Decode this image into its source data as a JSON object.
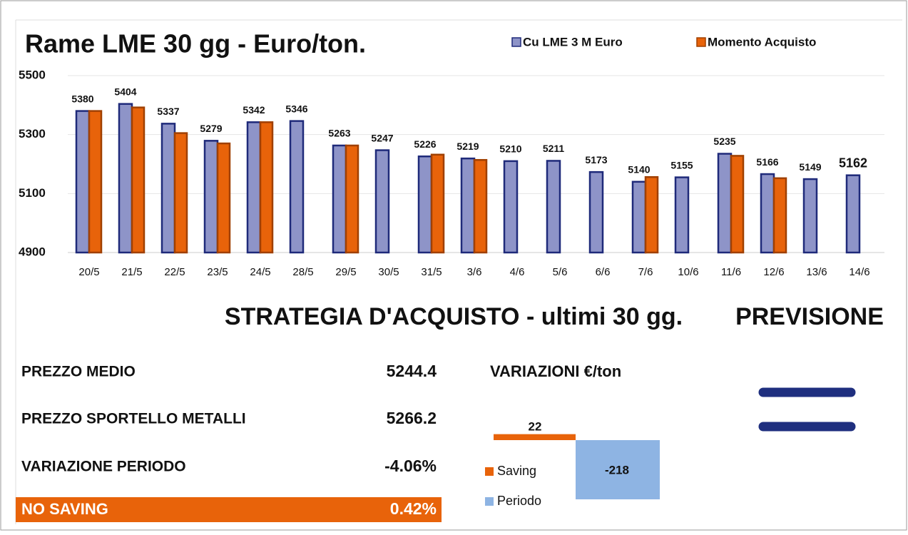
{
  "chart_data": [
    {
      "type": "bar",
      "title": "Rame  LME 30 gg - Euro/ton.",
      "categories": [
        "20/5",
        "21/5",
        "22/5",
        "23/5",
        "24/5",
        "28/5",
        "29/5",
        "30/5",
        "31/5",
        "3/6",
        "4/6",
        "5/6",
        "6/6",
        "7/6",
        "10/6",
        "11/6",
        "12/6",
        "13/6",
        "14/6"
      ],
      "series": [
        {
          "name": "Cu LME 3 M Euro",
          "color": "#8e94c8",
          "values": [
            5380,
            5404,
            5337,
            5279,
            5342,
            5346,
            5263,
            5247,
            5226,
            5219,
            5210,
            5211,
            5173,
            5140,
            5155,
            5235,
            5166,
            5149,
            5162
          ]
        },
        {
          "name": "Momento Acquisto",
          "color": "#e8630a",
          "values": [
            5380,
            5392,
            5305,
            5270,
            5342,
            null,
            5263,
            null,
            5232,
            5214,
            null,
            null,
            null,
            5156,
            null,
            5228,
            5152,
            null,
            null
          ]
        }
      ],
      "ylim": [
        4900,
        5500
      ],
      "yticks": [
        4900,
        5100,
        5300,
        5500
      ],
      "grid": true,
      "legend": "top-right"
    },
    {
      "type": "waterfall",
      "title": "VARIAZIONI €/ton",
      "series": [
        {
          "name": "Saving",
          "color": "#e8630a",
          "values": [
            22
          ]
        },
        {
          "name": "Periodo",
          "color": "#8eb4e3",
          "values": [
            -218
          ]
        }
      ]
    }
  ],
  "strategy": {
    "title": "STRATEGIA D'ACQUISTO - ultimi 30 gg.",
    "rows": [
      {
        "label": "PREZZO MEDIO",
        "value": "5244.4"
      },
      {
        "label": "PREZZO SPORTELLO METALLI",
        "value": "5266.2"
      },
      {
        "label": "VARIAZIONE PERIODO",
        "value": "-4.06%"
      },
      {
        "label": "NO SAVING",
        "value": "0.42%"
      }
    ]
  },
  "forecast": {
    "title": "PREVISIONE"
  }
}
